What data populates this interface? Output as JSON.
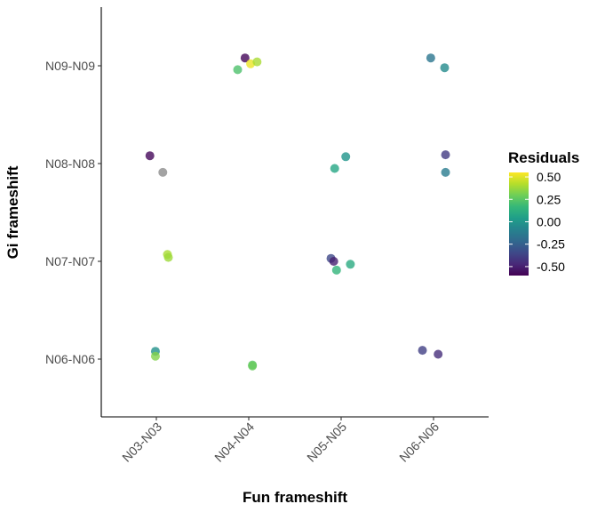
{
  "chart_data": {
    "type": "scatter",
    "xlabel": "Fun frameshift",
    "ylabel": "Gi frameshift",
    "x_categories": [
      "N03-N03",
      "N04-N04",
      "N05-N05",
      "N06-N06"
    ],
    "y_categories": [
      "N06-N06",
      "N07-N07",
      "N08-N08",
      "N09-N09"
    ],
    "grid": false,
    "legend": {
      "title": "Residuals",
      "position": "right",
      "type": "colorbar",
      "palette": "viridis",
      "range": [
        -0.6,
        0.55
      ],
      "ticks": [
        0.5,
        0.25,
        0.0,
        -0.25,
        -0.5
      ],
      "tick_labels": [
        "0.50",
        "0.25",
        "0.00",
        "-0.25",
        "-0.50"
      ]
    },
    "na_color": "#8c8c8c",
    "points": [
      {
        "x": "N03-N03",
        "x_jitter": -0.07,
        "y": "N08-N08",
        "y_jitter": 0.08,
        "residual": -0.58
      },
      {
        "x": "N03-N03",
        "x_jitter": 0.07,
        "y": "N08-N08",
        "y_jitter": -0.09,
        "residual": null
      },
      {
        "x": "N03-N03",
        "x_jitter": 0.12,
        "y": "N07-N07",
        "y_jitter": 0.07,
        "residual": 0.4
      },
      {
        "x": "N03-N03",
        "x_jitter": 0.13,
        "y": "N07-N07",
        "y_jitter": 0.04,
        "residual": 0.38
      },
      {
        "x": "N03-N03",
        "x_jitter": -0.01,
        "y": "N06-N06",
        "y_jitter": 0.08,
        "residual": -0.02
      },
      {
        "x": "N03-N03",
        "x_jitter": -0.01,
        "y": "N06-N06",
        "y_jitter": 0.03,
        "residual": 0.33
      },
      {
        "x": "N04-N04",
        "x_jitter": -0.04,
        "y": "N09-N09",
        "y_jitter": 0.08,
        "residual": -0.58
      },
      {
        "x": "N04-N04",
        "x_jitter": -0.12,
        "y": "N09-N09",
        "y_jitter": -0.04,
        "residual": 0.22
      },
      {
        "x": "N04-N04",
        "x_jitter": 0.02,
        "y": "N09-N09",
        "y_jitter": 0.02,
        "residual": 0.52
      },
      {
        "x": "N04-N04",
        "x_jitter": 0.09,
        "y": "N09-N09",
        "y_jitter": 0.04,
        "residual": 0.4
      },
      {
        "x": "N04-N04",
        "x_jitter": 0.04,
        "y": "N06-N06",
        "y_jitter": -0.06,
        "residual": 0.25
      },
      {
        "x": "N04-N04",
        "x_jitter": 0.04,
        "y": "N06-N06",
        "y_jitter": -0.07,
        "residual": 0.28
      },
      {
        "x": "N05-N05",
        "x_jitter": -0.07,
        "y": "N08-N08",
        "y_jitter": -0.05,
        "residual": 0.08
      },
      {
        "x": "N05-N05",
        "x_jitter": 0.05,
        "y": "N08-N08",
        "y_jitter": 0.07,
        "residual": 0.0
      },
      {
        "x": "N05-N05",
        "x_jitter": -0.11,
        "y": "N07-N07",
        "y_jitter": 0.03,
        "residual": -0.35
      },
      {
        "x": "N05-N05",
        "x_jitter": -0.08,
        "y": "N07-N07",
        "y_jitter": 0.0,
        "residual": -0.5
      },
      {
        "x": "N05-N05",
        "x_jitter": -0.05,
        "y": "N07-N07",
        "y_jitter": -0.09,
        "residual": 0.15
      },
      {
        "x": "N05-N05",
        "x_jitter": 0.1,
        "y": "N07-N07",
        "y_jitter": -0.03,
        "residual": 0.1
      },
      {
        "x": "N06-N06",
        "x_jitter": -0.03,
        "y": "N09-N09",
        "y_jitter": 0.08,
        "residual": -0.15
      },
      {
        "x": "N06-N06",
        "x_jitter": 0.12,
        "y": "N09-N09",
        "y_jitter": -0.02,
        "residual": -0.05
      },
      {
        "x": "N06-N06",
        "x_jitter": 0.13,
        "y": "N08-N08",
        "y_jitter": 0.09,
        "residual": -0.4
      },
      {
        "x": "N06-N06",
        "x_jitter": 0.13,
        "y": "N08-N08",
        "y_jitter": -0.09,
        "residual": -0.12
      },
      {
        "x": "N06-N06",
        "x_jitter": -0.12,
        "y": "N06-N06",
        "y_jitter": 0.09,
        "residual": -0.38
      },
      {
        "x": "N06-N06",
        "x_jitter": 0.05,
        "y": "N06-N06",
        "y_jitter": 0.05,
        "residual": -0.45
      }
    ]
  }
}
